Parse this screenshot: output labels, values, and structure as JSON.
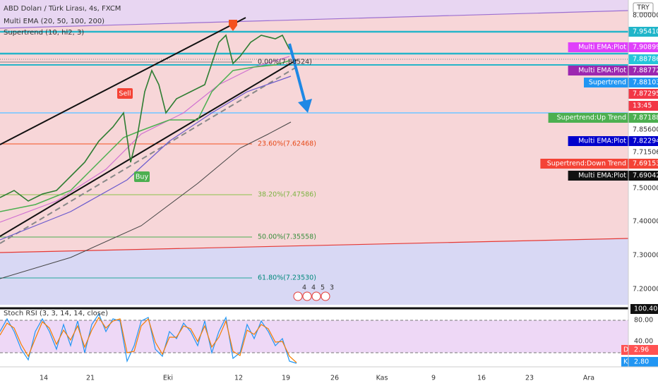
{
  "header": {
    "symbol": "ABD Doları / Türk Lirası, 4s, FXCM",
    "indicators": [
      "Multi EMA (20, 50, 100, 200)",
      "Supertrend (10, hl2, 3)"
    ]
  },
  "currency": "TRY",
  "fibonacci": [
    "0.00%(7.86524)",
    "23.60%(7.62468)",
    "38.20%(7.47586)",
    "50.00%(7.35558)",
    "61.80%(7.23530)"
  ],
  "signals": [
    "Sell",
    "Buy"
  ],
  "events": [
    "4",
    "4",
    "5",
    "3"
  ],
  "price_axis": [
    {
      "price": "8.00000"
    },
    {
      "price": "7.95410"
    },
    {
      "name": "Multi EMA:Plot",
      "price": "7.90899"
    },
    {
      "price": "7.88786"
    },
    {
      "name": "Multi EMA:Plot",
      "price": "7.88772"
    },
    {
      "name": "Supertrend",
      "price": "7.88103"
    },
    {
      "price": "7.87295"
    },
    {
      "price": "13:45"
    },
    {
      "name": "Supertrend:Up Trend",
      "price": "7.87188"
    },
    {
      "price": "7.85600"
    },
    {
      "name": "Multi EMA:Plot",
      "price": "7.82294"
    },
    {
      "price": "7.71506"
    },
    {
      "name": "Supertrend:Down Trend",
      "price": "7.69153"
    },
    {
      "name": "Multi EMA:Plot",
      "price": "7.69042"
    },
    {
      "price": "7.50000"
    },
    {
      "price": "7.40000"
    },
    {
      "price": "7.30000"
    },
    {
      "price": "7.20000"
    }
  ],
  "stoch": {
    "title": "Stoch RSI (3, 3, 14, 14, close)",
    "axis": [
      "100.40",
      "80.00",
      "40.00"
    ],
    "d": {
      "name": "D",
      "value": "2.96"
    },
    "k": {
      "name": "K",
      "value": "2.80"
    }
  },
  "time_axis": [
    "14",
    "21",
    "Eki",
    "12",
    "19",
    "26",
    "Kas",
    "9",
    "16",
    "23",
    "Ara"
  ]
}
